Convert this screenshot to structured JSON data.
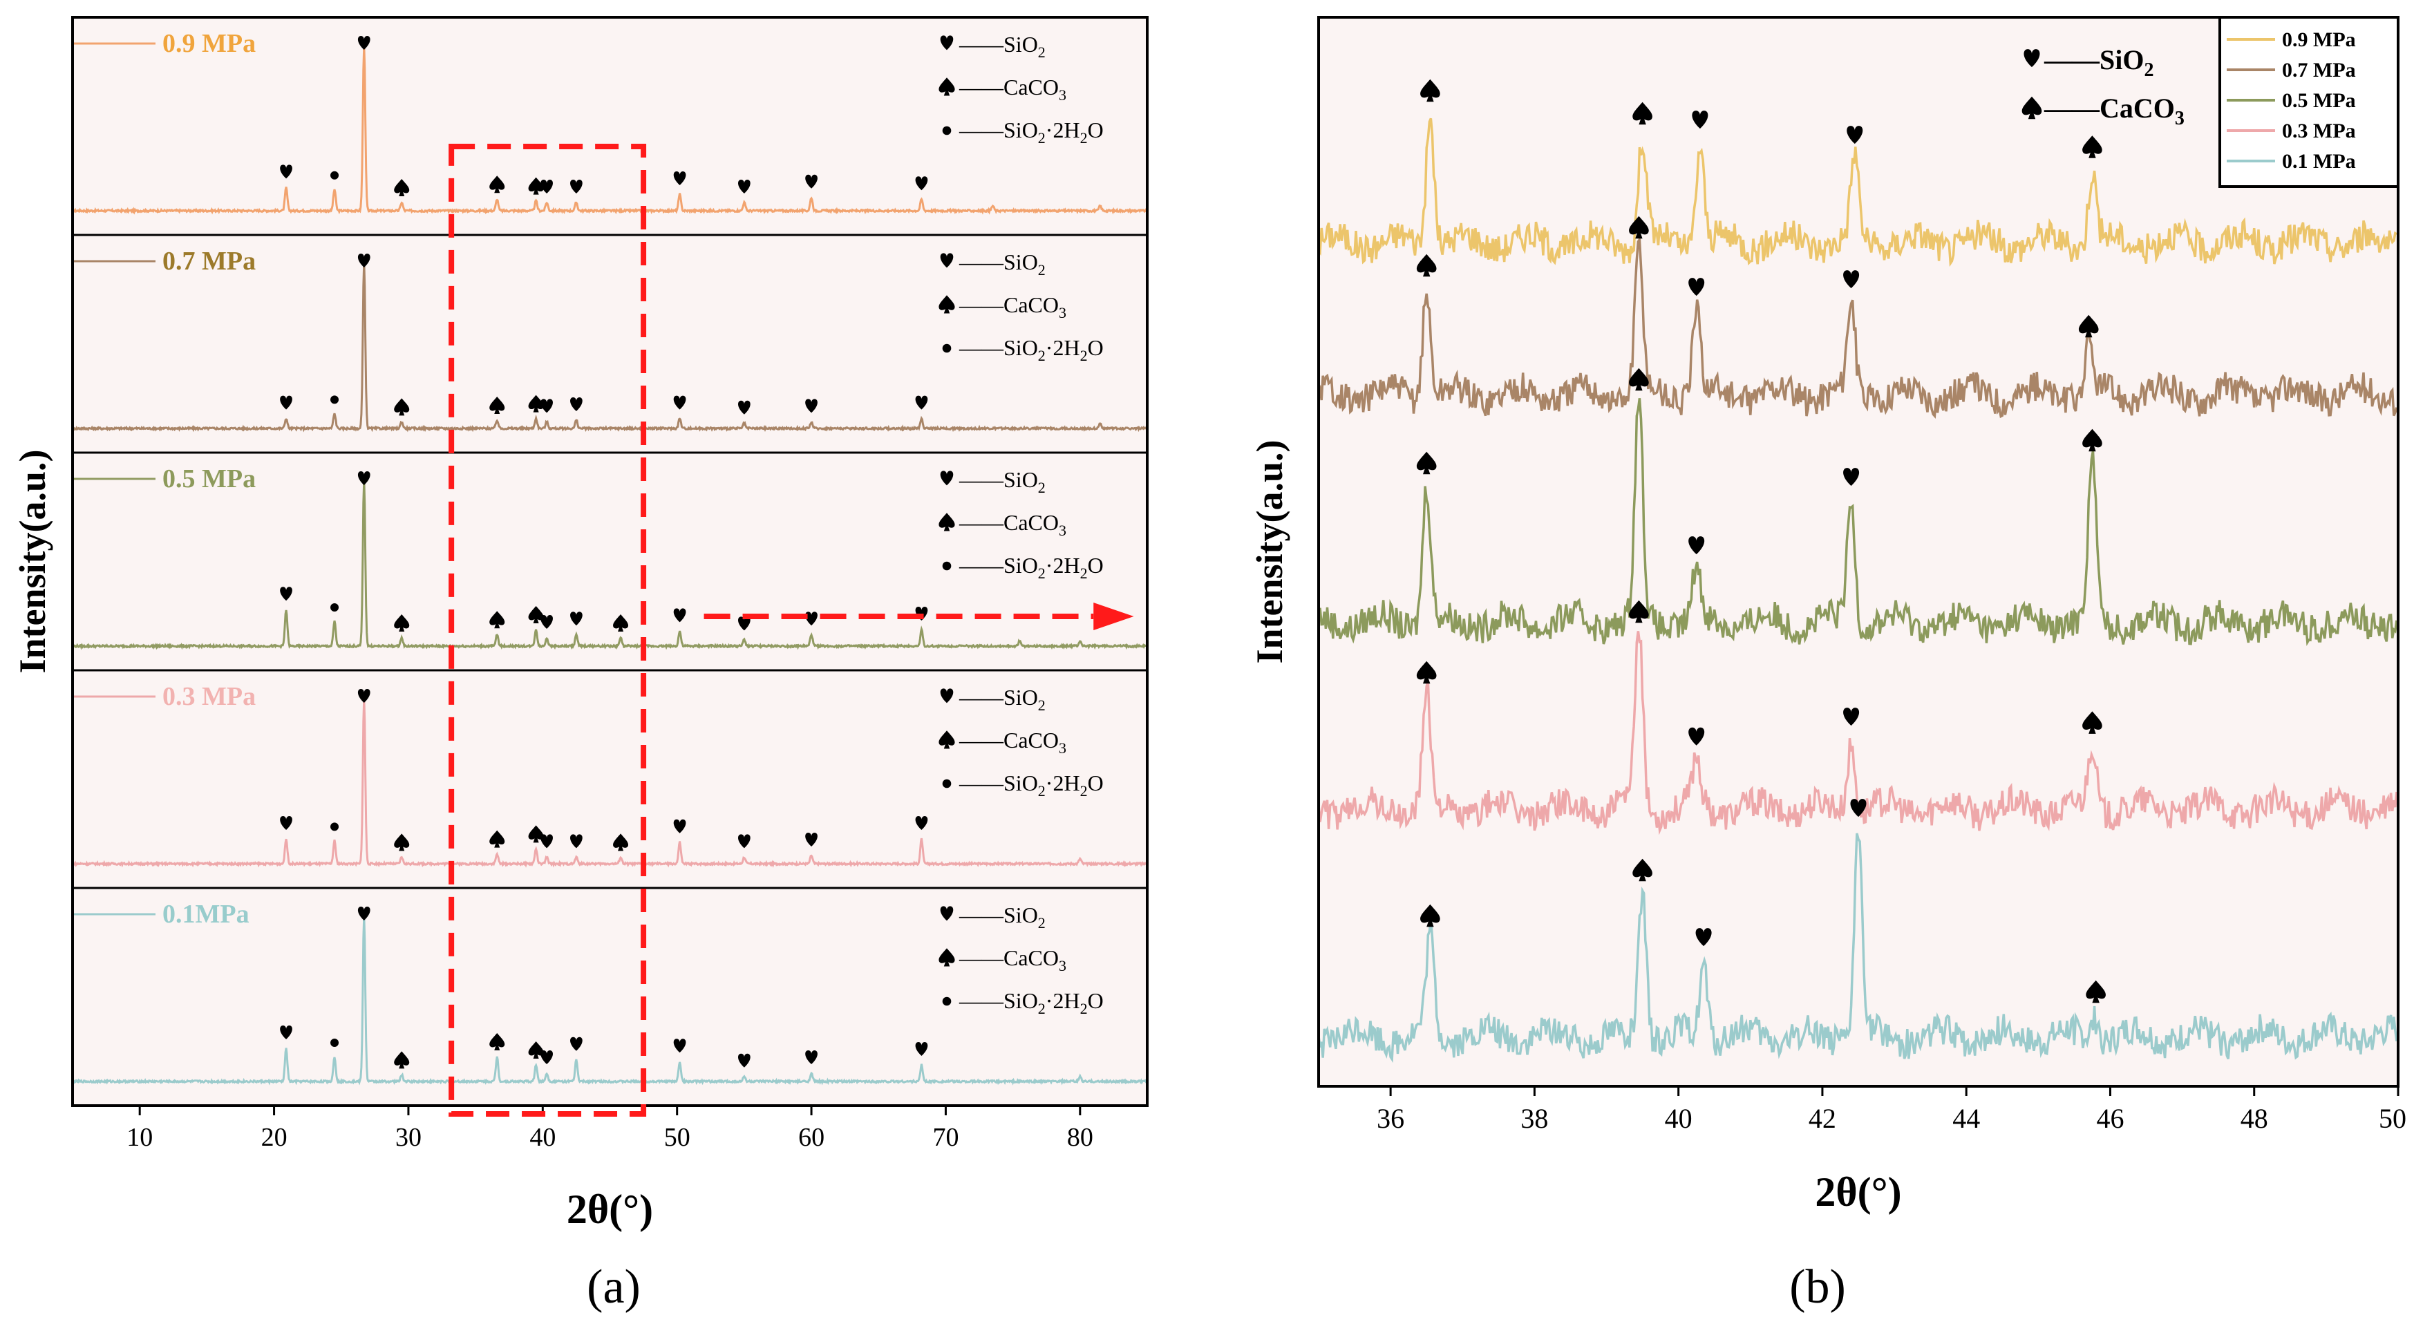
{
  "panels": {
    "a_label": "(a)",
    "b_label": "(b)"
  },
  "colors": {
    "0.9": "#f2a36e",
    "0.7": "#a98567",
    "0.5": "#919b62",
    "0.3": "#eea8aa",
    "0.1": "#9bcbcc",
    "0.9b": "#ecc56b",
    "0.7b": "#a98567",
    "0.5b": "#8c9a5c",
    "0.3b": "#eea8aa",
    "0.1b": "#9bcbcc",
    "label_0.9": "#f0a43c",
    "label_0.7": "#9c7a2a",
    "label_0.5": "#8d9a5b",
    "label_0.3": "#f2b2b0",
    "label_0.1": "#98cccc",
    "plot_bg": "#fbf4f3",
    "highlight": "#ff1a1a"
  },
  "icons": {
    "heart": "heart-icon",
    "spade": "spade-icon",
    "dot": "dot-icon"
  },
  "chart_data": [
    {
      "id": "a",
      "type": "line",
      "xlabel": "2θ(°)",
      "ylabel": "Intensity(a.u.)",
      "xlim": [
        5,
        85
      ],
      "xticks": [
        10,
        20,
        30,
        40,
        50,
        60,
        70,
        80
      ],
      "legend": {
        "placement": "top-right",
        "entries": [
          {
            "icon": "heart",
            "main": "——SiO",
            "sub": "2",
            "rest": ""
          },
          {
            "icon": "spade",
            "main": "——CaCO",
            "sub": "3",
            "rest": ""
          },
          {
            "icon": "dot",
            "main": "——SiO",
            "sub": "2",
            "rest": "·2H",
            "sub2": "2",
            "rest2": "O"
          }
        ]
      },
      "series": [
        {
          "name": "0.9 MPa",
          "color_key": "0.9",
          "label_key": "label_0.9",
          "peaks": [
            [
              20.9,
              0.14
            ],
            [
              24.5,
              0.13
            ],
            [
              26.7,
              1.0
            ],
            [
              29.5,
              0.05
            ],
            [
              36.6,
              0.07
            ],
            [
              39.5,
              0.06
            ],
            [
              40.3,
              0.05
            ],
            [
              42.5,
              0.05
            ],
            [
              50.2,
              0.1
            ],
            [
              55.0,
              0.05
            ],
            [
              60.0,
              0.08
            ],
            [
              68.2,
              0.07
            ],
            [
              73.5,
              0.03
            ],
            [
              81.5,
              0.03
            ]
          ],
          "markers": [
            [
              20.9,
              "heart"
            ],
            [
              24.5,
              "dot"
            ],
            [
              26.7,
              "heart"
            ],
            [
              29.5,
              "spade"
            ],
            [
              36.6,
              "spade"
            ],
            [
              39.5,
              "spade"
            ],
            [
              40.3,
              "heart"
            ],
            [
              42.5,
              "heart"
            ],
            [
              50.2,
              "heart"
            ],
            [
              55.0,
              "heart"
            ],
            [
              60.0,
              "heart"
            ],
            [
              68.2,
              "heart"
            ]
          ]
        },
        {
          "name": "0.7 MPa",
          "color_key": "0.7",
          "label_key": "label_0.7",
          "peaks": [
            [
              20.9,
              0.06
            ],
            [
              24.5,
              0.09
            ],
            [
              26.7,
              1.0
            ],
            [
              29.5,
              0.04
            ],
            [
              36.6,
              0.05
            ],
            [
              39.5,
              0.06
            ],
            [
              40.3,
              0.04
            ],
            [
              42.5,
              0.05
            ],
            [
              50.2,
              0.06
            ],
            [
              55.0,
              0.03
            ],
            [
              60.0,
              0.04
            ],
            [
              68.2,
              0.06
            ],
            [
              81.5,
              0.03
            ]
          ],
          "markers": [
            [
              20.9,
              "heart"
            ],
            [
              24.5,
              "dot"
            ],
            [
              26.7,
              "heart"
            ],
            [
              29.5,
              "spade"
            ],
            [
              36.6,
              "spade"
            ],
            [
              39.5,
              "spade"
            ],
            [
              40.3,
              "heart"
            ],
            [
              42.5,
              "heart"
            ],
            [
              50.2,
              "heart"
            ],
            [
              55.0,
              "heart"
            ],
            [
              60.0,
              "heart"
            ],
            [
              68.2,
              "heart"
            ]
          ]
        },
        {
          "name": "0.5 MPa",
          "color_key": "0.5",
          "label_key": "label_0.5",
          "peaks": [
            [
              20.9,
              0.22
            ],
            [
              24.5,
              0.15
            ],
            [
              26.7,
              1.0
            ],
            [
              29.5,
              0.05
            ],
            [
              36.6,
              0.07
            ],
            [
              39.5,
              0.1
            ],
            [
              40.3,
              0.05
            ],
            [
              42.5,
              0.07
            ],
            [
              45.8,
              0.05
            ],
            [
              50.2,
              0.09
            ],
            [
              55.0,
              0.04
            ],
            [
              60.0,
              0.07
            ],
            [
              68.2,
              0.1
            ],
            [
              75.5,
              0.03
            ],
            [
              80.0,
              0.03
            ]
          ],
          "markers": [
            [
              20.9,
              "heart"
            ],
            [
              24.5,
              "dot"
            ],
            [
              26.7,
              "heart"
            ],
            [
              29.5,
              "spade"
            ],
            [
              36.6,
              "spade"
            ],
            [
              39.5,
              "spade"
            ],
            [
              40.3,
              "heart"
            ],
            [
              42.5,
              "heart"
            ],
            [
              45.8,
              "spade"
            ],
            [
              50.2,
              "heart"
            ],
            [
              55.0,
              "heart"
            ],
            [
              60.0,
              "heart"
            ],
            [
              68.2,
              "heart"
            ]
          ]
        },
        {
          "name": "0.3 MPa",
          "color_key": "0.3",
          "label_key": "label_0.3",
          "peaks": [
            [
              20.9,
              0.15
            ],
            [
              24.5,
              0.14
            ],
            [
              26.7,
              1.0
            ],
            [
              29.5,
              0.04
            ],
            [
              36.6,
              0.06
            ],
            [
              39.5,
              0.09
            ],
            [
              40.3,
              0.04
            ],
            [
              42.5,
              0.04
            ],
            [
              45.8,
              0.04
            ],
            [
              50.2,
              0.13
            ],
            [
              55.0,
              0.04
            ],
            [
              60.0,
              0.05
            ],
            [
              68.2,
              0.15
            ],
            [
              80.0,
              0.03
            ]
          ],
          "markers": [
            [
              20.9,
              "heart"
            ],
            [
              24.5,
              "dot"
            ],
            [
              26.7,
              "heart"
            ],
            [
              29.5,
              "spade"
            ],
            [
              36.6,
              "spade"
            ],
            [
              39.5,
              "spade"
            ],
            [
              40.3,
              "heart"
            ],
            [
              42.5,
              "heart"
            ],
            [
              45.8,
              "spade"
            ],
            [
              50.2,
              "heart"
            ],
            [
              55.0,
              "heart"
            ],
            [
              60.0,
              "heart"
            ],
            [
              68.2,
              "heart"
            ]
          ]
        },
        {
          "name": "0.1MPa",
          "color_key": "0.1",
          "label_key": "label_0.1",
          "peaks": [
            [
              20.9,
              0.2
            ],
            [
              24.5,
              0.15
            ],
            [
              26.7,
              1.0
            ],
            [
              29.5,
              0.04
            ],
            [
              36.6,
              0.15
            ],
            [
              39.5,
              0.1
            ],
            [
              40.3,
              0.05
            ],
            [
              42.5,
              0.13
            ],
            [
              50.2,
              0.12
            ],
            [
              55.0,
              0.03
            ],
            [
              60.0,
              0.05
            ],
            [
              68.2,
              0.1
            ],
            [
              80.0,
              0.03
            ]
          ],
          "markers": [
            [
              20.9,
              "heart"
            ],
            [
              24.5,
              "dot"
            ],
            [
              26.7,
              "heart"
            ],
            [
              29.5,
              "spade"
            ],
            [
              36.6,
              "spade"
            ],
            [
              39.5,
              "spade"
            ],
            [
              40.3,
              "heart"
            ],
            [
              42.5,
              "heart"
            ],
            [
              50.2,
              "heart"
            ],
            [
              55.0,
              "heart"
            ],
            [
              60.0,
              "heart"
            ],
            [
              68.2,
              "heart"
            ]
          ]
        }
      ],
      "highlight_box": {
        "x_range": [
          33.2,
          47.5
        ]
      }
    },
    {
      "id": "b",
      "type": "line",
      "xlabel": "2θ(°)",
      "ylabel": "Intensity(a.u.)",
      "xlim": [
        35,
        50
      ],
      "xticks": [
        36,
        38,
        40,
        42,
        44,
        46,
        48,
        50
      ],
      "xtick_labels": [
        "36",
        "38",
        "40",
        "42",
        "44",
        "46",
        "48",
        "50"
      ],
      "legend": {
        "placement": "top-right",
        "entries": [
          "0.9 MPa",
          "0.7 MPa",
          "0.5 MPa",
          "0.3 MPa",
          "0.1 MPa"
        ]
      },
      "phase_legend": [
        {
          "icon": "heart",
          "main": "——SiO",
          "sub": "2"
        },
        {
          "icon": "spade",
          "main": "——CaCO",
          "sub": "3"
        }
      ],
      "series": [
        {
          "name": "0.9 MPa",
          "color_key": "0.9b",
          "peaks": [
            [
              36.55,
              0.85
            ],
            [
              39.5,
              0.7
            ],
            [
              40.3,
              0.65
            ],
            [
              42.45,
              0.55
            ],
            [
              45.75,
              0.48
            ]
          ],
          "markers": [
            [
              36.55,
              "spade"
            ],
            [
              39.5,
              "spade"
            ],
            [
              40.3,
              "heart"
            ],
            [
              42.45,
              "heart"
            ],
            [
              45.75,
              "spade"
            ]
          ]
        },
        {
          "name": "0.7 MPa",
          "color_key": "0.7b",
          "peaks": [
            [
              36.5,
              0.7
            ],
            [
              39.45,
              0.95
            ],
            [
              40.25,
              0.55
            ],
            [
              42.4,
              0.6
            ],
            [
              45.7,
              0.3
            ]
          ],
          "markers": [
            [
              36.5,
              "spade"
            ],
            [
              39.45,
              "spade"
            ],
            [
              40.25,
              "heart"
            ],
            [
              42.4,
              "heart"
            ],
            [
              45.7,
              "spade"
            ]
          ]
        },
        {
          "name": "0.5 MPa",
          "color_key": "0.5b",
          "peaks": [
            [
              36.5,
              0.9
            ],
            [
              39.45,
              1.45
            ],
            [
              40.25,
              0.35
            ],
            [
              42.4,
              0.8
            ],
            [
              45.75,
              1.05
            ]
          ],
          "markers": [
            [
              36.5,
              "spade"
            ],
            [
              39.45,
              "spade"
            ],
            [
              40.25,
              "heart"
            ],
            [
              42.4,
              "heart"
            ],
            [
              45.75,
              "spade"
            ]
          ]
        },
        {
          "name": "0.3 MPa",
          "color_key": "0.3b",
          "peaks": [
            [
              36.5,
              0.75
            ],
            [
              39.45,
              1.15
            ],
            [
              40.25,
              0.32
            ],
            [
              42.4,
              0.45
            ],
            [
              45.75,
              0.42
            ]
          ],
          "markers": [
            [
              36.5,
              "spade"
            ],
            [
              39.45,
              "spade"
            ],
            [
              40.25,
              "heart"
            ],
            [
              42.4,
              "heart"
            ],
            [
              45.75,
              "spade"
            ]
          ]
        },
        {
          "name": "0.1 MPa",
          "color_key": "0.1b",
          "peaks": [
            [
              36.55,
              0.65
            ],
            [
              39.5,
              0.95
            ],
            [
              40.35,
              0.5
            ],
            [
              42.5,
              1.35
            ],
            [
              45.8,
              0.15
            ]
          ],
          "markers": [
            [
              36.55,
              "spade"
            ],
            [
              39.5,
              "spade"
            ],
            [
              40.35,
              "heart"
            ],
            [
              42.5,
              "heart"
            ],
            [
              45.8,
              "spade"
            ]
          ]
        }
      ]
    }
  ]
}
